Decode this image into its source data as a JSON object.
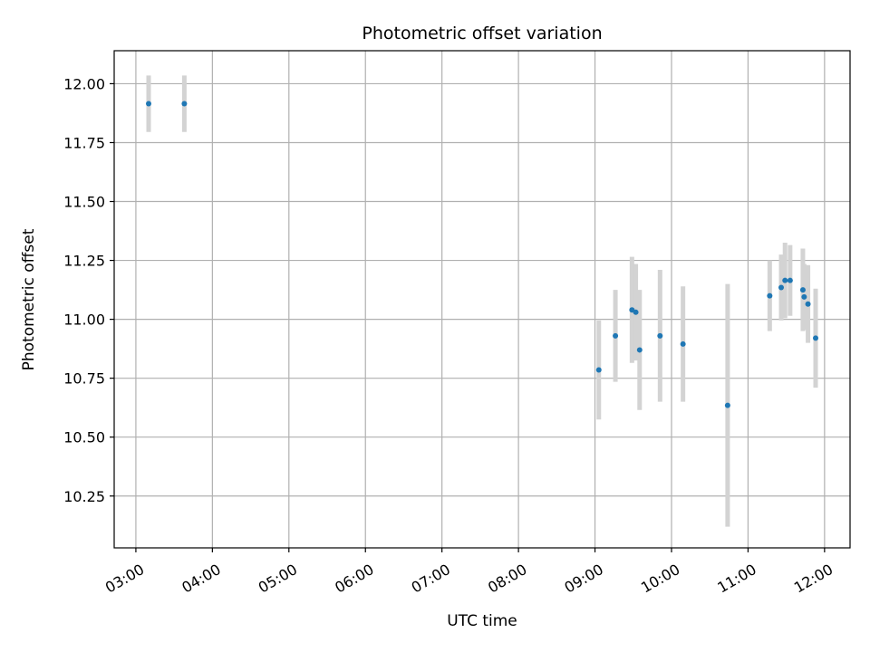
{
  "chart_data": {
    "type": "scatter",
    "title": "Photometric offset variation",
    "xlabel": "UTC time",
    "ylabel": "Photometric offset",
    "xlim": [
      "02:43",
      "12:20"
    ],
    "ylim": [
      10.03,
      12.14
    ],
    "x_ticks": [
      "03:00",
      "04:00",
      "05:00",
      "06:00",
      "07:00",
      "08:00",
      "09:00",
      "10:00",
      "11:00",
      "12:00"
    ],
    "y_ticks": [
      "10.25",
      "10.50",
      "10.75",
      "11.00",
      "11.25",
      "11.50",
      "11.75",
      "12.00"
    ],
    "grid": true,
    "colors": {
      "point": "#1f77b4",
      "errorbar": "#d3d3d3",
      "grid": "#b0b0b0"
    },
    "series": [
      {
        "points": [
          {
            "x": "03:10",
            "y": 11.915,
            "err": 0.12
          },
          {
            "x": "03:38",
            "y": 11.915,
            "err": 0.12
          },
          {
            "x": "09:03",
            "y": 10.785,
            "err": 0.21
          },
          {
            "x": "09:16",
            "y": 10.93,
            "err": 0.195
          },
          {
            "x": "09:29",
            "y": 11.04,
            "err": 0.225
          },
          {
            "x": "09:32",
            "y": 11.03,
            "err": 0.205
          },
          {
            "x": "09:35",
            "y": 10.87,
            "err": 0.255
          },
          {
            "x": "09:51",
            "y": 10.93,
            "err": 0.28
          },
          {
            "x": "10:09",
            "y": 10.895,
            "err": 0.245
          },
          {
            "x": "10:44",
            "y": 10.635,
            "err": 0.515
          },
          {
            "x": "11:17",
            "y": 11.1,
            "err": 0.15
          },
          {
            "x": "11:26",
            "y": 11.135,
            "err": 0.14
          },
          {
            "x": "11:29",
            "y": 11.165,
            "err": 0.16
          },
          {
            "x": "11:33",
            "y": 11.165,
            "err": 0.15
          },
          {
            "x": "11:43",
            "y": 11.125,
            "err": 0.175
          },
          {
            "x": "11:44",
            "y": 11.095,
            "err": 0.14
          },
          {
            "x": "11:47",
            "y": 11.065,
            "err": 0.165
          },
          {
            "x": "11:53",
            "y": 10.92,
            "err": 0.21
          }
        ]
      }
    ]
  }
}
